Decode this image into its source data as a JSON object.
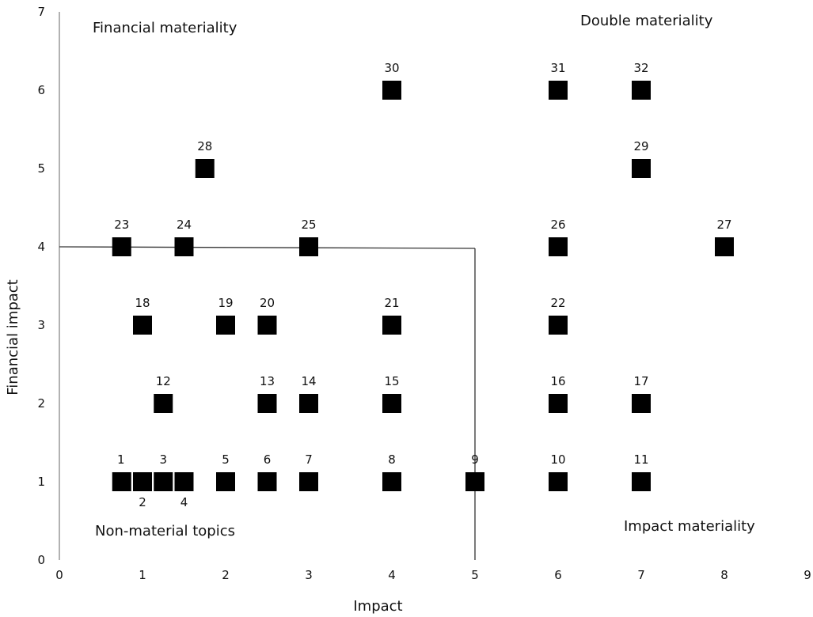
{
  "chart_data": {
    "type": "scatter",
    "title": "",
    "xlabel": "Impact",
    "ylabel": "Financial impact",
    "xlim": [
      0,
      9
    ],
    "ylim": [
      0,
      7
    ],
    "xticks": [
      "0",
      "1",
      "2",
      "3",
      "4",
      "5",
      "6",
      "7",
      "8",
      "9"
    ],
    "yticks": [
      "0",
      "1",
      "2",
      "3",
      "4",
      "5",
      "6",
      "7"
    ],
    "grid": false,
    "marker": "square",
    "marker_color": "#000000",
    "threshold": {
      "x": 5,
      "y": 4
    },
    "quadrant_labels": {
      "top_left": "Financial materiality",
      "top_right": "Double materiality",
      "bottom_left": "Non-material topics",
      "bottom_right": "Impact materiality"
    },
    "points": [
      {
        "label": "1",
        "x": 0.75,
        "y": 1
      },
      {
        "label": "2",
        "x": 1.0,
        "y": 1
      },
      {
        "label": "3",
        "x": 1.25,
        "y": 1
      },
      {
        "label": "4",
        "x": 1.5,
        "y": 1
      },
      {
        "label": "5",
        "x": 2.0,
        "y": 1
      },
      {
        "label": "6",
        "x": 2.5,
        "y": 1
      },
      {
        "label": "7",
        "x": 3.0,
        "y": 1
      },
      {
        "label": "8",
        "x": 4.0,
        "y": 1
      },
      {
        "label": "9",
        "x": 5.0,
        "y": 1
      },
      {
        "label": "10",
        "x": 6.0,
        "y": 1
      },
      {
        "label": "11",
        "x": 7.0,
        "y": 1
      },
      {
        "label": "12",
        "x": 1.25,
        "y": 2
      },
      {
        "label": "13",
        "x": 2.5,
        "y": 2
      },
      {
        "label": "14",
        "x": 3.0,
        "y": 2
      },
      {
        "label": "15",
        "x": 4.0,
        "y": 2
      },
      {
        "label": "16",
        "x": 6.0,
        "y": 2
      },
      {
        "label": "17",
        "x": 7.0,
        "y": 2
      },
      {
        "label": "18",
        "x": 1.0,
        "y": 3
      },
      {
        "label": "19",
        "x": 2.0,
        "y": 3
      },
      {
        "label": "20",
        "x": 2.5,
        "y": 3
      },
      {
        "label": "21",
        "x": 4.0,
        "y": 3
      },
      {
        "label": "22",
        "x": 6.0,
        "y": 3
      },
      {
        "label": "23",
        "x": 0.75,
        "y": 4
      },
      {
        "label": "24",
        "x": 1.5,
        "y": 4
      },
      {
        "label": "25",
        "x": 3.0,
        "y": 4
      },
      {
        "label": "26",
        "x": 6.0,
        "y": 4
      },
      {
        "label": "27",
        "x": 8.0,
        "y": 4
      },
      {
        "label": "28",
        "x": 1.75,
        "y": 5
      },
      {
        "label": "29",
        "x": 7.0,
        "y": 5
      },
      {
        "label": "30",
        "x": 4.0,
        "y": 6
      },
      {
        "label": "31",
        "x": 6.0,
        "y": 6
      },
      {
        "label": "32",
        "x": 7.0,
        "y": 6
      }
    ]
  }
}
